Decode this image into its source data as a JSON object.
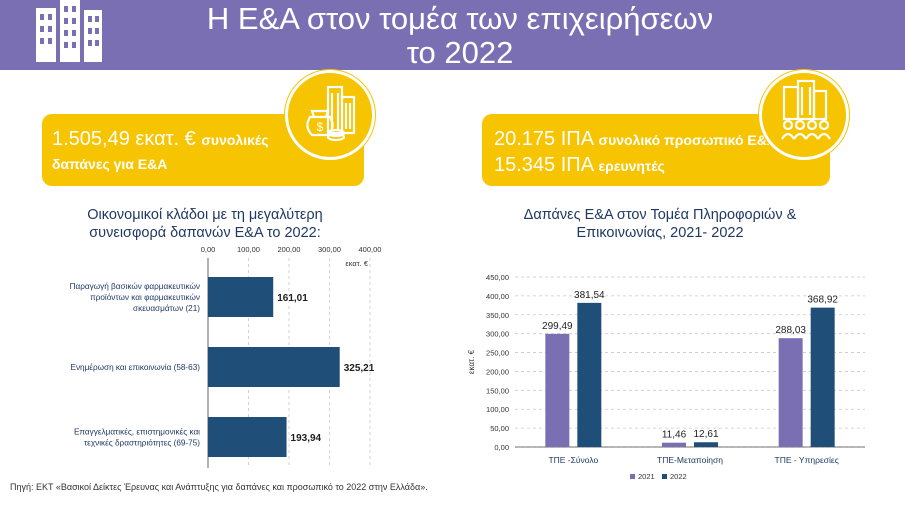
{
  "header": {
    "title_line1": "Η Ε&Α στον τομέα των επιχειρήσεων",
    "title_line2": "το 2022"
  },
  "cards": {
    "left": {
      "amount": "1.505,49 εκατ. €",
      "text1": "συνολικές",
      "text2": "δαπάνες για Ε&Α"
    },
    "right": {
      "line1_value": "20.175 ΙΠΑ",
      "line1_text": "συνολικό προσωπικό Ε&Α",
      "line2_value": "15.345 ΙΠΑ",
      "line2_text": "ερευνητές"
    }
  },
  "icons": {
    "banner": "office-buildings-icon",
    "card_left": "money-bag-city-icon",
    "card_right": "building-people-icon"
  },
  "colors": {
    "banner": "#7b6fb4",
    "card": "#f6c400",
    "bar_left": "#1f4e79",
    "series_2021": "#7b6fb4",
    "series_2022": "#1f4e79",
    "text": "#1f3864"
  },
  "source": "Πηγή: ΕΚΤ «Βασικοί Δείκτες Έρευνας και Ανάπτυξης για δαπάνες και προσωπικό το 2022 στην Ελλάδα».",
  "chart_data": [
    {
      "type": "bar",
      "orientation": "horizontal",
      "title_line1": "Οικονομικοί κλάδοι με τη μεγαλύτερη",
      "title_line2": "συνεισφορά δαπανών Ε&Α το 2022:",
      "axis_unit": "εκατ. €",
      "xlim": [
        0,
        400
      ],
      "ticks": [
        "0,00",
        "100,00",
        "200,00",
        "300,00",
        "400,00"
      ],
      "tick_values": [
        0,
        100,
        200,
        300,
        400
      ],
      "categories": [
        [
          "Παραγωγή βασικών φαρμακευτικών",
          "προϊόντων και φαρμακευτικών",
          "σκευασμάτων (21)"
        ],
        [
          "Ενημέρωση και επικοινωνία  (58-63)"
        ],
        [
          "Επαγγελματικές, επιστημονικές και",
          "τεχνικές δραστηριότητες (69-75)"
        ]
      ],
      "values": [
        161.01,
        325.21,
        193.94
      ],
      "labels": [
        "161,01",
        "325,21",
        "193,94"
      ]
    },
    {
      "type": "bar",
      "orientation": "vertical",
      "title_line1": "Δαπάνες Ε&Α στον Τομέα Πληροφοριών &",
      "title_line2": "Επικοινωνίας, 2021- 2022",
      "ylabel": "εκατ. €",
      "ylim": [
        0,
        450
      ],
      "ticks": [
        "0,00",
        "50,00",
        "100,00",
        "150,00",
        "200,00",
        "250,00",
        "300,00",
        "350,00",
        "400,00",
        "450,00"
      ],
      "tick_values": [
        0,
        50,
        100,
        150,
        200,
        250,
        300,
        350,
        400,
        450
      ],
      "categories": [
        "ΤΠΕ -Σύνολο",
        "ΤΠΕ-Μεταποίηση",
        "ΤΠΕ - Υπηρεσίες"
      ],
      "series": [
        {
          "name": "2021",
          "values": [
            299.49,
            11.46,
            288.03
          ],
          "labels": [
            "299,49",
            "11,46",
            "288,03"
          ]
        },
        {
          "name": "2022",
          "values": [
            381.54,
            12.61,
            368.92
          ],
          "labels": [
            "381,54",
            "12,61",
            "368,92"
          ]
        }
      ],
      "legend": "bottom"
    }
  ]
}
